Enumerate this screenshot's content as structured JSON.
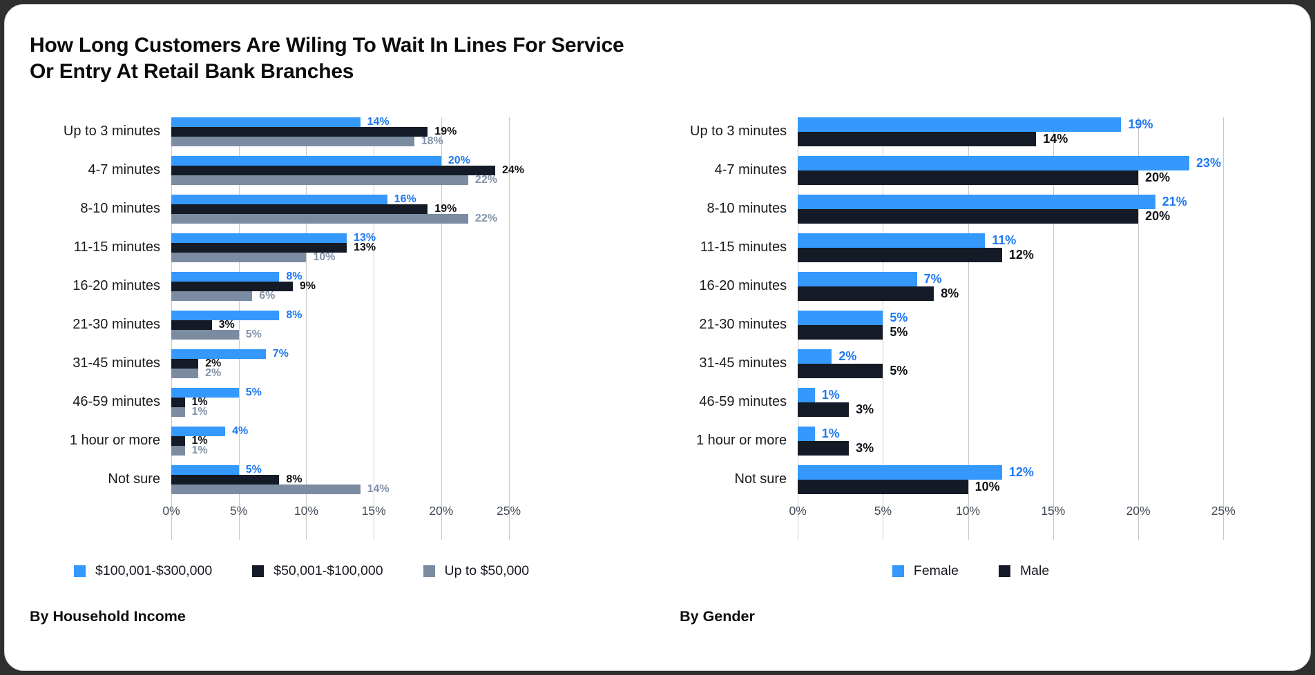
{
  "title_line1": "How Long Customers Are Wiling To Wait In Lines For Service",
  "title_line2": "Or Entry At Retail Bank Branches",
  "captions": {
    "income": "By Household Income",
    "gender": "By Gender"
  },
  "colors": {
    "blue": "#3498fd",
    "dark_navy": "#141b26",
    "slate_gray": "#7b8ca2",
    "blue_label": "#1d79f2",
    "dark_label": "#0f1115",
    "gray_label": "#8293a9",
    "gridline": "#c9c9c9",
    "axis_text": "#434b59"
  },
  "chart_data": [
    {
      "type": "bar",
      "orientation": "horizontal",
      "group_title": "By Household Income",
      "categories": [
        "Up to 3 minutes",
        "4-7 minutes",
        "8-10 minutes",
        "11-15 minutes",
        "16-20 minutes",
        "21-30 minutes",
        "31-45 minutes",
        "46-59 minutes",
        "1 hour or more",
        "Not sure"
      ],
      "series": [
        {
          "name": "$100,001-$300,000",
          "color": "#3498fd",
          "label_color": "#1d79f2",
          "values": [
            14,
            20,
            16,
            13,
            8,
            8,
            7,
            5,
            4,
            5
          ]
        },
        {
          "name": "$50,001-$100,000",
          "color": "#141b26",
          "label_color": "#0f1115",
          "values": [
            19,
            24,
            19,
            13,
            9,
            3,
            2,
            1,
            1,
            8
          ]
        },
        {
          "name": "Up to $50,000",
          "color": "#7b8ca2",
          "label_color": "#8293a9",
          "values": [
            18,
            22,
            22,
            10,
            6,
            5,
            2,
            1,
            1,
            14
          ]
        }
      ],
      "xaxis": {
        "tick_values": [
          0,
          5,
          10,
          15,
          20,
          25
        ],
        "tick_labels": [
          "0%",
          "5%",
          "10%",
          "15%",
          "20%",
          "25%"
        ],
        "xlim": [
          0,
          25
        ]
      },
      "grid": true,
      "legend_position": "bottom",
      "value_label_suffix": "%"
    },
    {
      "type": "bar",
      "orientation": "horizontal",
      "group_title": "By Gender",
      "categories": [
        "Up to 3 minutes",
        "4-7 minutes",
        "8-10 minutes",
        "11-15 minutes",
        "16-20 minutes",
        "21-30 minutes",
        "31-45 minutes",
        "46-59 minutes",
        "1 hour or more",
        "Not sure"
      ],
      "series": [
        {
          "name": "Female",
          "color": "#3498fd",
          "label_color": "#1d79f2",
          "values": [
            19,
            23,
            21,
            11,
            7,
            5,
            2,
            1,
            1,
            12
          ]
        },
        {
          "name": "Male",
          "color": "#141b26",
          "label_color": "#0f1115",
          "values": [
            14,
            20,
            20,
            12,
            8,
            5,
            5,
            3,
            3,
            10
          ]
        }
      ],
      "xaxis": {
        "tick_values": [
          0,
          5,
          10,
          15,
          20,
          25
        ],
        "tick_labels": [
          "0%",
          "5%",
          "10%",
          "15%",
          "20%",
          "25%"
        ],
        "xlim": [
          0,
          25
        ]
      },
      "grid": true,
      "legend_position": "bottom",
      "value_label_suffix": "%"
    }
  ]
}
